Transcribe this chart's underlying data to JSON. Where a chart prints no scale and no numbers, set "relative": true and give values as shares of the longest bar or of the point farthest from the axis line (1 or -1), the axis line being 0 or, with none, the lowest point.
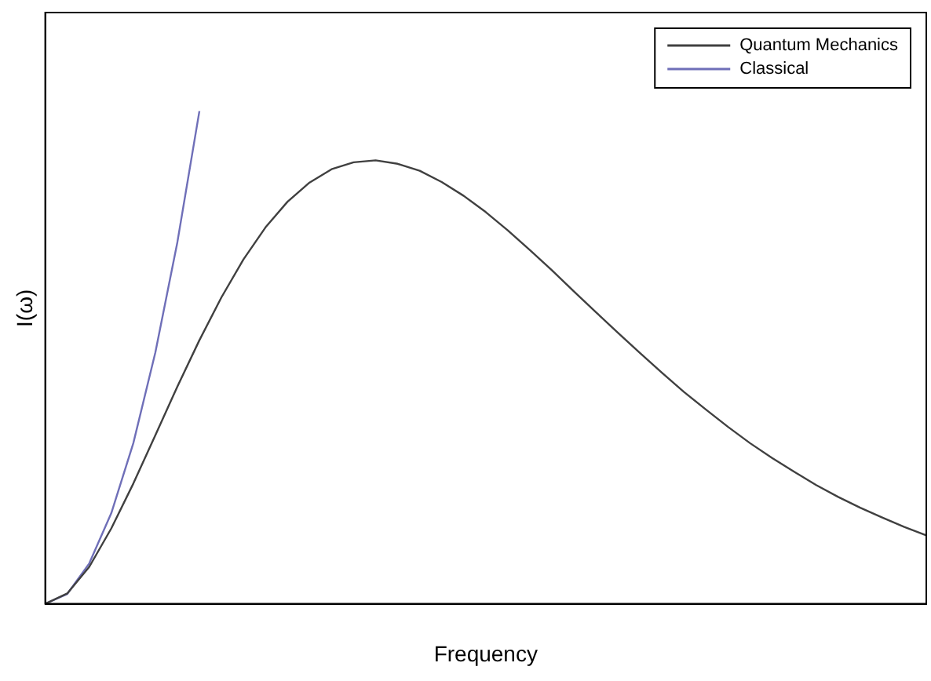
{
  "chart_data": {
    "type": "line",
    "relative": true,
    "xlabel": "Frequency",
    "ylabel": "I(ω)",
    "legend": "top right",
    "marker": "none",
    "line_style": "solid",
    "grid": false,
    "categories": [
      null,
      null,
      null,
      null,
      null,
      null,
      null,
      null,
      null,
      null,
      null,
      null,
      null,
      null,
      null,
      null,
      null,
      null,
      null,
      null,
      null,
      null,
      null,
      null,
      null,
      null,
      null,
      null,
      null,
      null,
      null,
      null,
      null,
      null,
      null,
      null,
      null,
      null,
      null,
      null,
      null
    ],
    "series": [
      {
        "name": "Quantum Mechanics",
        "color": "#404040",
        "values": [
          0,
          0.021,
          0.075,
          0.153,
          0.244,
          0.342,
          0.441,
          0.535,
          0.622,
          0.699,
          0.764,
          0.816,
          0.855,
          0.882,
          0.896,
          0.9,
          0.893,
          0.879,
          0.856,
          0.828,
          0.795,
          0.758,
          0.718,
          0.677,
          0.634,
          0.592,
          0.55,
          0.509,
          0.469,
          0.43,
          0.394,
          0.359,
          0.326,
          0.296,
          0.268,
          0.241,
          0.217,
          0.195,
          0.175,
          0.156,
          0.139
        ]
      },
      {
        "name": "Classical",
        "color": "#6f6fb8",
        "values": [
          0,
          0.02,
          0.082,
          0.184,
          0.326,
          0.51,
          0.734,
          1.0,
          null,
          null,
          null,
          null,
          null,
          null,
          null,
          null,
          null,
          null,
          null,
          null,
          null,
          null,
          null,
          null,
          null,
          null,
          null,
          null,
          null,
          null,
          null,
          null,
          null,
          null,
          null,
          null,
          null,
          null,
          null,
          null,
          null
        ]
      }
    ]
  }
}
